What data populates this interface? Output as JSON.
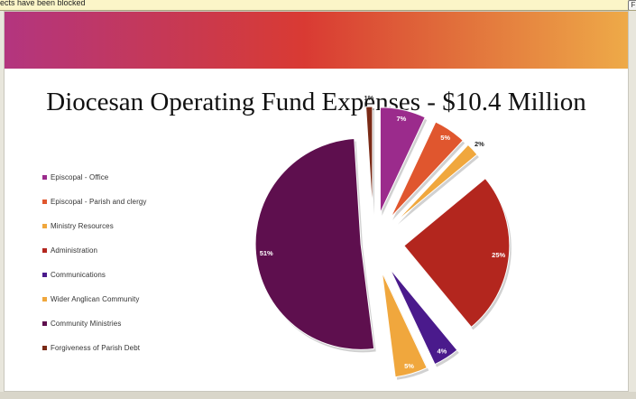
{
  "browser": {
    "infobar_text": "ects have been blocked",
    "infobar_button": "F"
  },
  "slide": {
    "title": "Diocesan Operating Fund Expenses - $10.4 Million"
  },
  "chart_data": {
    "type": "pie",
    "title": "Diocesan Operating Fund Expenses - $10.4 Million",
    "exploded": true,
    "legend_position": "left",
    "slices": [
      {
        "name": "Episcopal - Office",
        "value": 7,
        "label": "7%",
        "color": "#9b2b8c",
        "label_color": "#ffffff"
      },
      {
        "name": "Episcopal - Parish and clergy",
        "value": 5,
        "label": "5%",
        "color": "#e0562e",
        "label_color": "#ffffff"
      },
      {
        "name": "Ministry Resources",
        "value": 2,
        "label": "2%",
        "color": "#f0a73d",
        "label_color": "#222222"
      },
      {
        "name": "Administration",
        "value": 25,
        "label": "25%",
        "color": "#b3261e",
        "label_color": "#ffffff"
      },
      {
        "name": "Communications",
        "value": 4,
        "label": "4%",
        "color": "#4a1a8c",
        "label_color": "#ffffff"
      },
      {
        "name": "Wider Anglican Community",
        "value": 5,
        "label": "5%",
        "color": "#f0a73d",
        "label_color": "#ffffff"
      },
      {
        "name": "Community Ministries",
        "value": 51,
        "label": "51%",
        "color": "#5e0f4e",
        "label_color": "#ffffff"
      },
      {
        "name": "Forgiveness of Parish Debt",
        "value": 1,
        "label": "1%",
        "color": "#7a2a16",
        "label_color": "#222222"
      }
    ]
  }
}
